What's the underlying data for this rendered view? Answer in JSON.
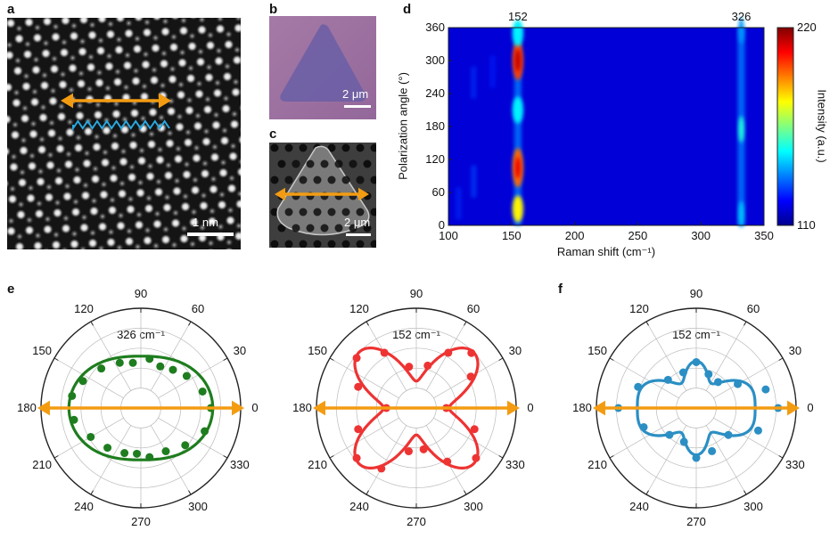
{
  "panels": {
    "a": {
      "label": "a",
      "scale_bar": "1 nm"
    },
    "b": {
      "label": "b",
      "scale_bar": "2 μm"
    },
    "c": {
      "label": "c",
      "scale_bar": "2 μm"
    },
    "d": {
      "label": "d"
    },
    "e": {
      "label": "e"
    },
    "f": {
      "label": "f"
    }
  },
  "colors": {
    "arrow_orange": "#f39c12",
    "wave_blue": "#29a8e0",
    "green": "#1e7d1e",
    "red": "#ee3333",
    "blue": "#2b8fc4",
    "grid": "#bbbbbb"
  },
  "chart_data": [
    {
      "panel": "d",
      "type": "heatmap",
      "xlabel": "Raman shift (cm⁻¹)",
      "ylabel": "Polarization angle (°)",
      "colorbar_label": "Intensity (a.u.)",
      "xlim": [
        100,
        350
      ],
      "ylim": [
        0,
        360
      ],
      "clim": [
        110,
        220
      ],
      "x_ticks": [
        "100",
        "150",
        "200",
        "250",
        "300",
        "350"
      ],
      "y_ticks": [
        "0",
        "60",
        "120",
        "180",
        "240",
        "300",
        "360"
      ],
      "colorbar_ticks": [
        "110",
        "220"
      ],
      "peak_labels": [
        "152",
        "326"
      ],
      "peaks": [
        {
          "x": 155,
          "y": 300,
          "intensity": 200
        },
        {
          "x": 155,
          "y": 105,
          "intensity": 195
        },
        {
          "x": 155,
          "y": 30,
          "intensity": 180
        },
        {
          "x": 155,
          "y": 210,
          "intensity": 150
        },
        {
          "x": 155,
          "y": 350,
          "intensity": 150
        },
        {
          "x": 332,
          "y": 175,
          "intensity": 155
        },
        {
          "x": 332,
          "y": 20,
          "intensity": 145
        },
        {
          "x": 332,
          "y": 355,
          "intensity": 140
        }
      ]
    },
    {
      "panel": "e-left",
      "type": "scatter",
      "projection": "polar",
      "annotation": "326 cm⁻¹",
      "angle_ticks": [
        "0",
        "30",
        "60",
        "90",
        "120",
        "150",
        "180",
        "210",
        "240",
        "270",
        "300",
        "330"
      ],
      "fit": {
        "model": "a + b*cos(2θ)",
        "a": 0.62,
        "b": 0.1
      },
      "points": [
        {
          "angle": 0,
          "r": 0.7
        },
        {
          "angle": 15,
          "r": 0.64
        },
        {
          "angle": 35,
          "r": 0.56
        },
        {
          "angle": 50,
          "r": 0.5
        },
        {
          "angle": 65,
          "r": 0.46
        },
        {
          "angle": 80,
          "r": 0.5
        },
        {
          "angle": 100,
          "r": 0.46
        },
        {
          "angle": 115,
          "r": 0.5
        },
        {
          "angle": 135,
          "r": 0.56
        },
        {
          "angle": 155,
          "r": 0.64
        },
        {
          "angle": 170,
          "r": 0.7
        },
        {
          "angle": 190,
          "r": 0.68
        },
        {
          "angle": 210,
          "r": 0.58
        },
        {
          "angle": 230,
          "r": 0.52
        },
        {
          "angle": 250,
          "r": 0.48
        },
        {
          "angle": 265,
          "r": 0.46
        },
        {
          "angle": 280,
          "r": 0.5
        },
        {
          "angle": 300,
          "r": 0.5
        },
        {
          "angle": 320,
          "r": 0.58
        },
        {
          "angle": 340,
          "r": 0.68
        }
      ]
    },
    {
      "panel": "e-right",
      "type": "scatter",
      "projection": "polar",
      "annotation": "152 cm⁻¹",
      "angle_ticks": [
        "0",
        "30",
        "60",
        "90",
        "120",
        "150",
        "180",
        "210",
        "240",
        "270",
        "300",
        "330"
      ],
      "fit": {
        "model": "a + b*cos(4θ) + c*cos(2θ)",
        "a": 0.55,
        "b": -0.25,
        "c": 0.03
      },
      "points": [
        {
          "angle": 0,
          "r": 0.3
        },
        {
          "angle": 30,
          "r": 0.63
        },
        {
          "angle": 45,
          "r": 0.78
        },
        {
          "angle": 60,
          "r": 0.64
        },
        {
          "angle": 75,
          "r": 0.44
        },
        {
          "angle": 100,
          "r": 0.42
        },
        {
          "angle": 120,
          "r": 0.64
        },
        {
          "angle": 140,
          "r": 0.78
        },
        {
          "angle": 160,
          "r": 0.62
        },
        {
          "angle": 180,
          "r": 0.3
        },
        {
          "angle": 200,
          "r": 0.62
        },
        {
          "angle": 220,
          "r": 0.78
        },
        {
          "angle": 240,
          "r": 0.7
        },
        {
          "angle": 260,
          "r": 0.44
        },
        {
          "angle": 280,
          "r": 0.42
        },
        {
          "angle": 300,
          "r": 0.62
        },
        {
          "angle": 320,
          "r": 0.78
        },
        {
          "angle": 340,
          "r": 0.62
        }
      ]
    },
    {
      "panel": "f",
      "type": "scatter",
      "projection": "polar",
      "annotation": "152 cm⁻¹",
      "angle_ticks": [
        "0",
        "30",
        "60",
        "90",
        "120",
        "150",
        "180",
        "210",
        "240",
        "270",
        "300",
        "330"
      ],
      "fit": {
        "model": "a + b*cos(2θ) + c*cos(4θ) - d*cos(6θ)",
        "a": 0.45,
        "b": 0.12,
        "c": 0.08,
        "d": 0.06
      },
      "points": [
        {
          "angle": 0,
          "r": 0.82
        },
        {
          "angle": 15,
          "r": 0.72
        },
        {
          "angle": 30,
          "r": 0.48
        },
        {
          "angle": 50,
          "r": 0.34
        },
        {
          "angle": 70,
          "r": 0.36
        },
        {
          "angle": 90,
          "r": 0.46
        },
        {
          "angle": 110,
          "r": 0.38
        },
        {
          "angle": 135,
          "r": 0.4
        },
        {
          "angle": 160,
          "r": 0.62
        },
        {
          "angle": 180,
          "r": 0.78
        },
        {
          "angle": 200,
          "r": 0.56
        },
        {
          "angle": 225,
          "r": 0.38
        },
        {
          "angle": 250,
          "r": 0.36
        },
        {
          "angle": 270,
          "r": 0.5
        },
        {
          "angle": 290,
          "r": 0.46
        },
        {
          "angle": 320,
          "r": 0.42
        },
        {
          "angle": 340,
          "r": 0.66
        }
      ]
    }
  ]
}
